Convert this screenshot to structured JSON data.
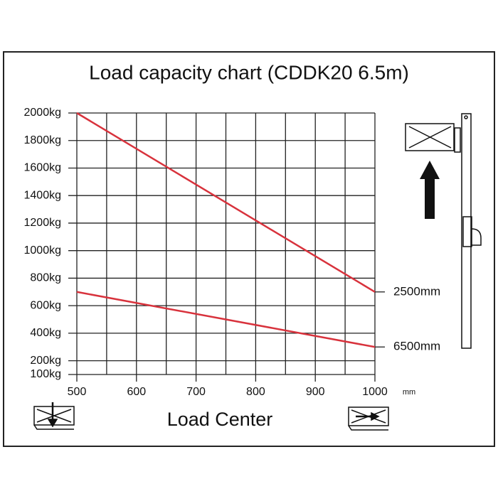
{
  "chart_data": {
    "type": "line",
    "title": "Load capacity chart (CDDK20 6.5m)",
    "x_label": "Load Center",
    "x_unit": "mm",
    "x": [
      500,
      1000
    ],
    "series": [
      {
        "name": "2500mm",
        "color": "#d8323c",
        "values": [
          2000,
          700
        ]
      },
      {
        "name": "6500mm",
        "color": "#d8323c",
        "values": [
          700,
          300
        ]
      }
    ],
    "xlim": [
      500,
      1000
    ],
    "xticks": [
      500,
      600,
      700,
      800,
      900,
      1000
    ],
    "xgrid": [
      500,
      550,
      600,
      650,
      700,
      750,
      800,
      850,
      900,
      950,
      1000
    ],
    "ylim": [
      100,
      2000
    ],
    "yticks": [
      {
        "value": 2000,
        "label": "2000kg"
      },
      {
        "value": 1800,
        "label": "1800kg"
      },
      {
        "value": 1600,
        "label": "1600kg"
      },
      {
        "value": 1400,
        "label": "1400kg"
      },
      {
        "value": 1200,
        "label": "1200kg"
      },
      {
        "value": 1000,
        "label": "1000kg"
      },
      {
        "value": 800,
        "label": "800kg"
      },
      {
        "value": 600,
        "label": "600kg"
      },
      {
        "value": 400,
        "label": "400kg"
      },
      {
        "value": 200,
        "label": "200kg"
      },
      {
        "value": 100,
        "label": "100kg"
      }
    ],
    "grid": true
  }
}
